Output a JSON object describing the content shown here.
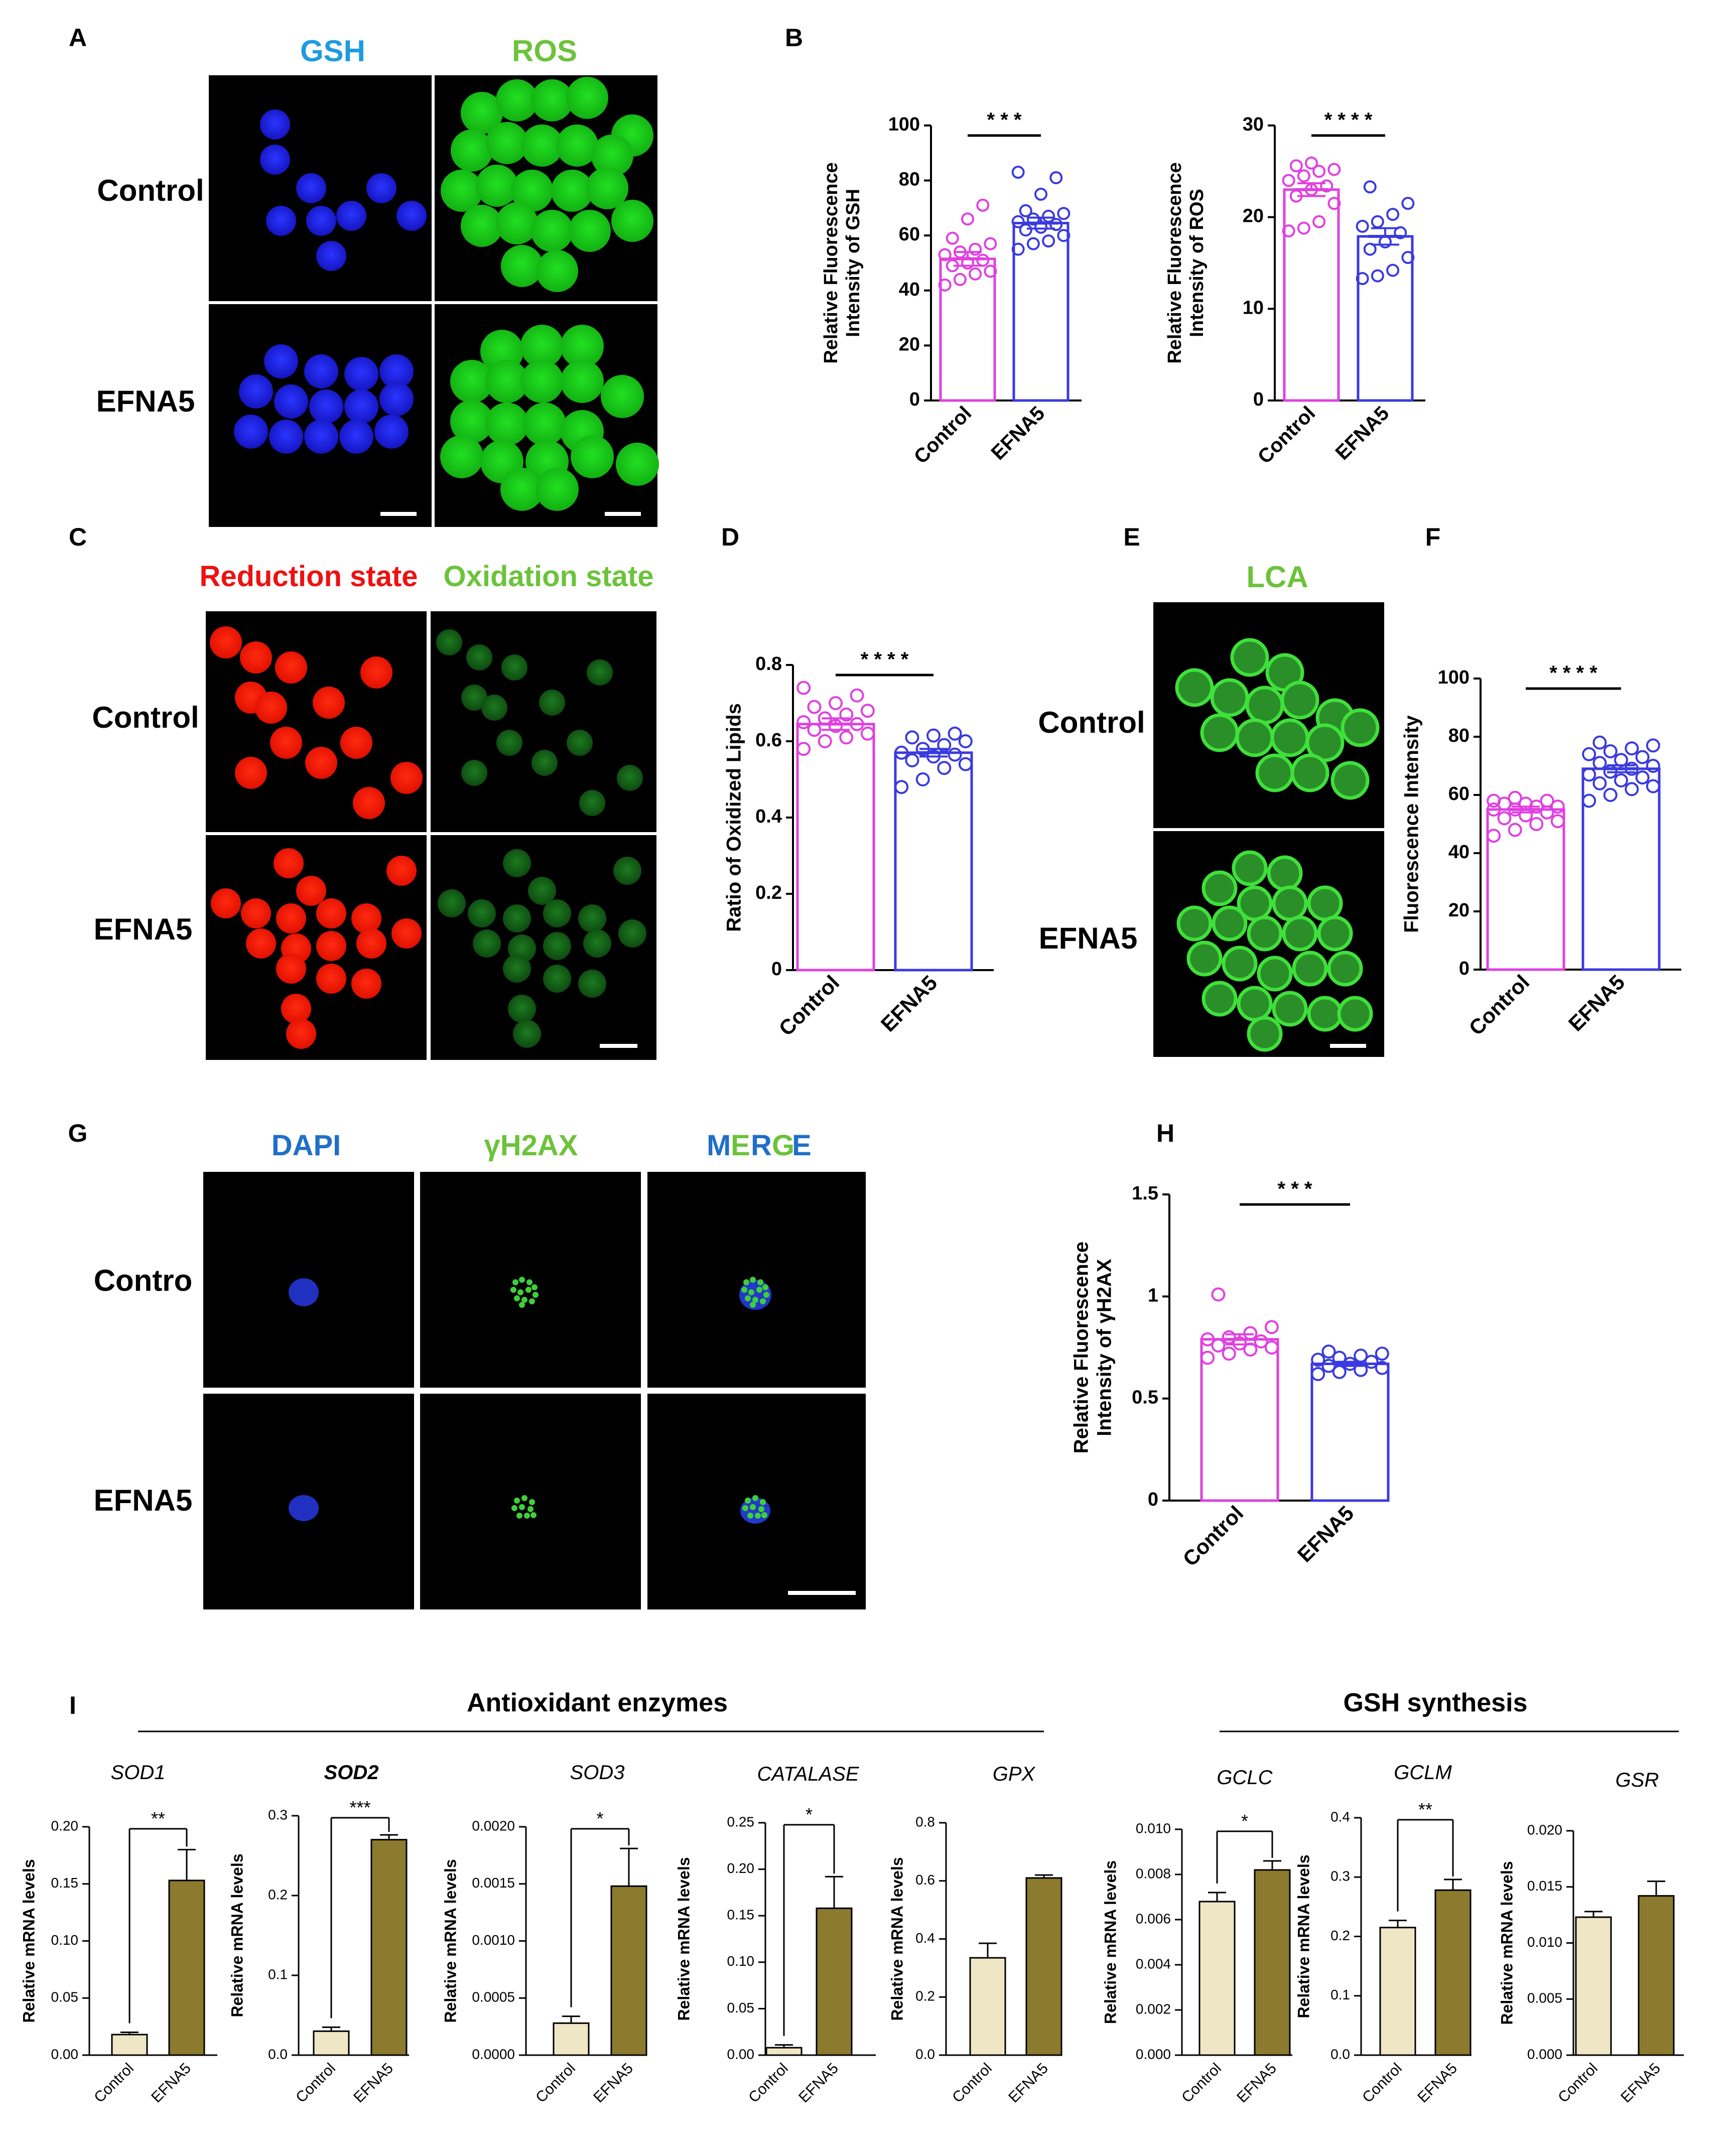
{
  "palette": {
    "control": "#e040e0",
    "efna5": "#3a3ae0",
    "gene_control_fill": "#efe6c6",
    "gene_efna5_fill": "#8c7a2e",
    "gsh_blue": "#1e9be0",
    "ros_green": "#6cc33a",
    "red": "#ee1111",
    "oxid_green": "#6cc33a",
    "dapi_blue": "#1f6fc8"
  },
  "panel_letters": [
    "A",
    "B",
    "C",
    "D",
    "E",
    "F",
    "G",
    "H",
    "I"
  ],
  "panel_a": {
    "col_headers": [
      "GSH",
      "ROS"
    ],
    "row_labels": [
      "Control",
      "EFNA5"
    ]
  },
  "panel_c": {
    "col_headers": [
      "Reduction state",
      "Oxidation state"
    ],
    "row_labels": [
      "Control",
      "EFNA5"
    ]
  },
  "panel_e": {
    "col_headers": [
      "LCA"
    ],
    "row_labels": [
      "Control",
      "EFNA5"
    ]
  },
  "panel_g": {
    "col_headers": [
      "DAPI",
      "γH2AX",
      "MERGE"
    ],
    "merge_letters": [
      "M",
      "E",
      "R",
      "G",
      "E"
    ],
    "row_labels": [
      "Contro",
      "EFNA5"
    ]
  },
  "panel_i": {
    "group_titles": [
      "Antioxidant enzymes",
      "GSH synthesis"
    ]
  },
  "chart_data": [
    {
      "id": "B1",
      "type": "bar",
      "panel": "B",
      "categories": [
        "Control",
        "EFNA5"
      ],
      "values": [
        51.5,
        64.5
      ],
      "errors": [
        2.5,
        2.0
      ],
      "ylim": [
        0,
        100
      ],
      "yticks": [
        0,
        20,
        40,
        60,
        80,
        100
      ],
      "ylabel": [
        "Relative Fluorescence",
        "Intensity of GSH"
      ],
      "significance": "***",
      "points": [
        [
          42,
          44,
          46,
          47,
          49,
          50,
          51,
          53,
          54,
          55,
          57,
          59,
          66,
          71
        ],
        [
          55,
          57,
          58,
          60,
          62,
          63,
          64,
          65,
          66,
          67,
          68,
          69,
          75,
          81,
          83
        ]
      ]
    },
    {
      "id": "B2",
      "type": "bar",
      "panel": "B",
      "categories": [
        "Control",
        "EFNA5"
      ],
      "values": [
        23.0,
        17.9
      ],
      "errors": [
        0.7,
        0.9
      ],
      "ylim": [
        0,
        30
      ],
      "yticks": [
        0,
        10,
        20,
        30
      ],
      "ylabel": [
        "Relative Fluorescence",
        "Intensity of ROS"
      ],
      "significance": "****",
      "points": [
        [
          18.5,
          18.8,
          19.5,
          21.5,
          22.3,
          23,
          23.4,
          24,
          24.5,
          25,
          25.2,
          25.6,
          25.9
        ],
        [
          13.3,
          13.6,
          14.2,
          15.6,
          16.5,
          17.3,
          18.3,
          19,
          19.5,
          20.3,
          21.5,
          23.3
        ]
      ]
    },
    {
      "id": "D",
      "type": "bar",
      "panel": "D",
      "categories": [
        "Control",
        "EFNA5"
      ],
      "values": [
        0.645,
        0.57
      ],
      "errors": [
        0.015,
        0.01
      ],
      "ylim": [
        0,
        0.8
      ],
      "yticks": [
        0.0,
        0.2,
        0.4,
        0.6,
        0.8
      ],
      "ylabel": [
        "Ratio of Oxidized Lipids"
      ],
      "significance": "****",
      "points": [
        [
          0.58,
          0.6,
          0.61,
          0.62,
          0.63,
          0.64,
          0.645,
          0.65,
          0.66,
          0.67,
          0.68,
          0.69,
          0.7,
          0.72,
          0.74
        ],
        [
          0.48,
          0.5,
          0.53,
          0.54,
          0.55,
          0.56,
          0.565,
          0.57,
          0.58,
          0.59,
          0.6,
          0.61,
          0.615,
          0.62
        ]
      ]
    },
    {
      "id": "F",
      "type": "bar",
      "panel": "F",
      "categories": [
        "Control",
        "EFNA5"
      ],
      "values": [
        55,
        69
      ],
      "errors": [
        1.0,
        1.2
      ],
      "ylim": [
        0,
        100
      ],
      "yticks": [
        0,
        20,
        40,
        60,
        80,
        100
      ],
      "ylabel": [
        "Fluorescence Intensity"
      ],
      "significance": "****",
      "points": [
        [
          46,
          48,
          50,
          51,
          52,
          53,
          54,
          55,
          55,
          56,
          56,
          57,
          57,
          58,
          58,
          59
        ],
        [
          58,
          60,
          62,
          63,
          64,
          65,
          66,
          67,
          68,
          69,
          70,
          71,
          72,
          73,
          74,
          75,
          76,
          77,
          78
        ]
      ]
    },
    {
      "id": "H",
      "type": "bar",
      "panel": "H",
      "categories": [
        "Control",
        "EFNA5"
      ],
      "values": [
        0.79,
        0.67
      ],
      "errors": [
        0.025,
        0.01
      ],
      "ylim": [
        0,
        1.5
      ],
      "yticks": [
        0.0,
        0.5,
        1.0,
        1.5
      ],
      "ylabel": [
        "Relative Fluorescence",
        "Intensity of γH2AX"
      ],
      "significance": "***",
      "points": [
        [
          0.7,
          0.72,
          0.74,
          0.75,
          0.76,
          0.77,
          0.78,
          0.79,
          0.8,
          0.82,
          0.85,
          1.01
        ],
        [
          0.62,
          0.63,
          0.64,
          0.65,
          0.66,
          0.67,
          0.68,
          0.69,
          0.7,
          0.71,
          0.72,
          0.73
        ]
      ]
    },
    {
      "id": "I1",
      "type": "bar",
      "panel": "I",
      "gene": "SOD1",
      "categories": [
        "Control",
        "EFNA5"
      ],
      "values": [
        0.018,
        0.153
      ],
      "errors": [
        0.002,
        0.027
      ],
      "ylim": [
        0,
        0.2
      ],
      "yticks": [
        "0.00",
        "0.05",
        "0.10",
        "0.15",
        "0.20"
      ],
      "ylabel": [
        "Relative mRNA levels"
      ],
      "significance": "**"
    },
    {
      "id": "I2",
      "type": "bar",
      "panel": "I",
      "gene": "SOD2",
      "categories": [
        "Control",
        "EFNA5"
      ],
      "values": [
        0.03,
        0.27
      ],
      "errors": [
        0.005,
        0.006
      ],
      "ylim": [
        0,
        0.3
      ],
      "yticks": [
        "0.0",
        "0.1",
        "0.2",
        "0.3"
      ],
      "ylabel": [
        "Relative mRNA levels"
      ],
      "significance": "***"
    },
    {
      "id": "I3",
      "type": "bar",
      "panel": "I",
      "gene": "SOD3",
      "categories": [
        "Control",
        "EFNA5"
      ],
      "values": [
        0.00028,
        0.00148
      ],
      "errors": [
        6e-05,
        0.00033
      ],
      "ylim": [
        0,
        0.002
      ],
      "yticks": [
        "0.0000",
        "0.0005",
        "0.0010",
        "0.0015",
        "0.0020"
      ],
      "ylabel": [
        "Relative mRNA levels"
      ],
      "significance": "*"
    },
    {
      "id": "I4",
      "type": "bar",
      "panel": "I",
      "gene": "CATALASE",
      "categories": [
        "Control",
        "EFNA5"
      ],
      "values": [
        0.008,
        0.158
      ],
      "errors": [
        0.003,
        0.034
      ],
      "ylim": [
        0,
        0.25
      ],
      "yticks": [
        "0.00",
        "0.05",
        "0.10",
        "0.15",
        "0.20",
        "0.25"
      ],
      "ylabel": [
        "Relative mRNA levels"
      ],
      "significance": "*"
    },
    {
      "id": "I5",
      "type": "bar",
      "panel": "I",
      "gene": "GPX",
      "categories": [
        "Control",
        "EFNA5"
      ],
      "values": [
        0.335,
        0.61
      ],
      "errors": [
        0.05,
        0.01
      ],
      "ylim": [
        0,
        0.8
      ],
      "yticks": [
        "0.0",
        "0.2",
        "0.4",
        "0.6",
        "0.8"
      ],
      "ylabel": [
        "Relative mRNA levels"
      ],
      "significance": ""
    },
    {
      "id": "I6",
      "type": "bar",
      "panel": "I",
      "gene": "GCLC",
      "categories": [
        "Control",
        "EFNA5"
      ],
      "values": [
        0.0068,
        0.0082
      ],
      "errors": [
        0.0004,
        0.0004
      ],
      "ylim": [
        0,
        0.01
      ],
      "yticks": [
        "0.000",
        "0.002",
        "0.004",
        "0.006",
        "0.008",
        "0.010"
      ],
      "ylabel": [
        "Relative mRNA levels"
      ],
      "significance": "*"
    },
    {
      "id": "I7",
      "type": "bar",
      "panel": "I",
      "gene": "GCLM",
      "categories": [
        "Control",
        "EFNA5"
      ],
      "values": [
        0.215,
        0.278
      ],
      "errors": [
        0.012,
        0.018
      ],
      "ylim": [
        0,
        0.4
      ],
      "yticks": [
        "0.0",
        "0.1",
        "0.2",
        "0.3",
        "0.4"
      ],
      "ylabel": [
        "Relative mRNA levels"
      ],
      "significance": "**"
    },
    {
      "id": "I8",
      "type": "bar",
      "panel": "I",
      "gene": "GSR",
      "categories": [
        "Control",
        "EFNA5"
      ],
      "values": [
        0.0123,
        0.0142
      ],
      "errors": [
        0.0005,
        0.0013
      ],
      "ylim": [
        0,
        0.02
      ],
      "yticks": [
        "0.000",
        "0.005",
        "0.010",
        "0.015",
        "0.020"
      ],
      "ylabel": [
        "Relative mRNA levels"
      ],
      "significance": ""
    }
  ]
}
